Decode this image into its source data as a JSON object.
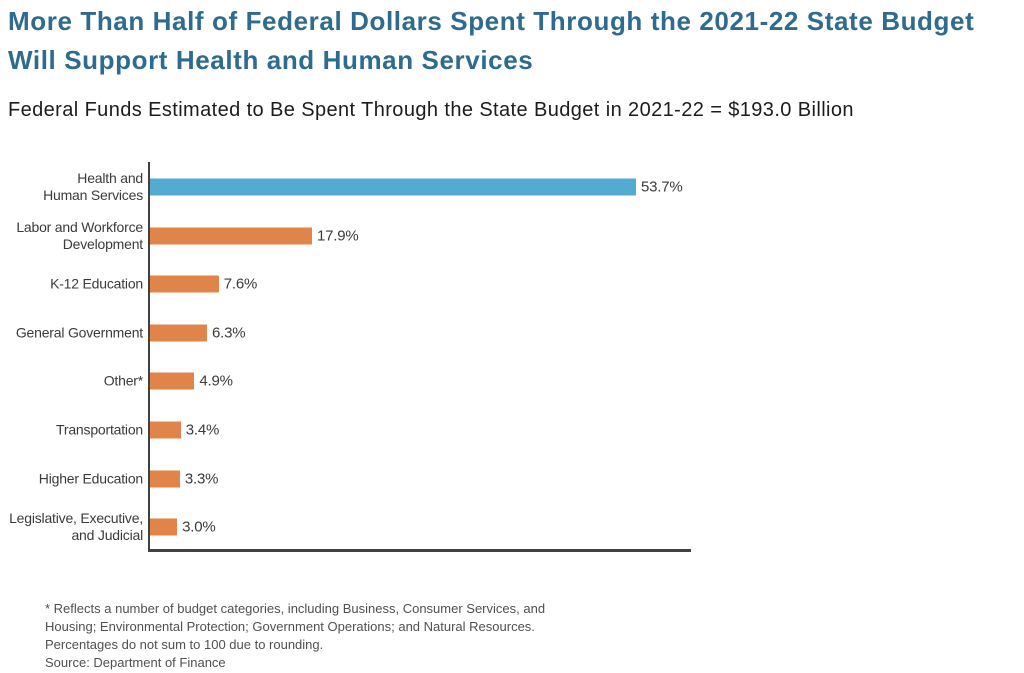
{
  "header": {
    "title": "More Than Half of Federal Dollars Spent Through the 2021-22 State Budget Will Support Health and Human Services"
  },
  "chart_data": {
    "type": "bar",
    "orientation": "horizontal",
    "title": "Federal Funds Estimated to Be Spent Through the State Budget in 2021-22 = $193.0 Billion",
    "categories": [
      "Health and\nHuman Services",
      "Labor and Workforce\nDevelopment",
      "K-12 Education",
      "General Government",
      "Other*",
      "Transportation",
      "Higher Education",
      "Legislative, Executive,\nand Judicial"
    ],
    "values": [
      53.7,
      17.9,
      7.6,
      6.3,
      4.9,
      3.4,
      3.3,
      3.0
    ],
    "value_labels": [
      "53.7%",
      "17.9%",
      "7.6%",
      "6.3%",
      "4.9%",
      "3.4%",
      "3.3%",
      "3.0%"
    ],
    "bar_colors": [
      "#54ABD2",
      "#E08449",
      "#E08449",
      "#E08449",
      "#E08449",
      "#E08449",
      "#E08449",
      "#E08449"
    ],
    "xlim": [
      0,
      60
    ],
    "grid": false,
    "legend": false,
    "xlabel": "",
    "ylabel": ""
  },
  "footnote": {
    "note": "* Reflects a number of budget categories, including Business, Consumer Services, and Housing; Environmental Protection; Government Operations; and Natural Resources. Percentages do not sum to 100 due to rounding.",
    "source": "Source: Department of Finance"
  },
  "colors": {
    "title_text": "#2E6B8E",
    "highlight_bar": "#54ABD2",
    "default_bar": "#E08449",
    "axis": "#414042"
  }
}
